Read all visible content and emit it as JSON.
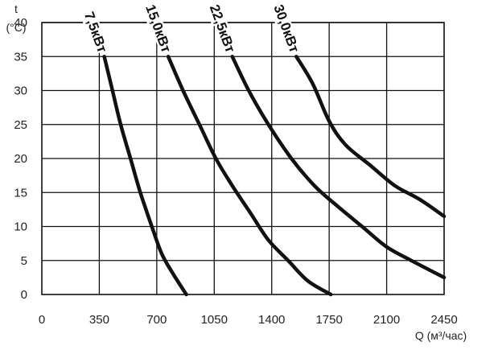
{
  "chart_data": {
    "type": "line",
    "y_title_top": "t",
    "y_title_bottom": "(°C)",
    "xlabel": "Q (м³/час)",
    "xlim": [
      0,
      2450
    ],
    "ylim": [
      0,
      40
    ],
    "x_ticks": [
      0,
      350,
      700,
      1050,
      1400,
      1750,
      2100,
      2450
    ],
    "y_ticks": [
      0,
      5,
      10,
      15,
      20,
      25,
      30,
      35,
      40
    ],
    "grid": true,
    "series": [
      {
        "name": "7,5кВт",
        "points": [
          [
            380,
            35
          ],
          [
            430,
            30
          ],
          [
            480,
            25
          ],
          [
            540,
            20
          ],
          [
            600,
            15
          ],
          [
            670,
            10
          ],
          [
            730,
            6
          ],
          [
            800,
            3
          ],
          [
            880,
            0
          ]
        ]
      },
      {
        "name": "15,0кВт",
        "points": [
          [
            770,
            35
          ],
          [
            860,
            30
          ],
          [
            960,
            25
          ],
          [
            1060,
            20
          ],
          [
            1160,
            16
          ],
          [
            1270,
            12
          ],
          [
            1380,
            8
          ],
          [
            1500,
            5
          ],
          [
            1620,
            2
          ],
          [
            1760,
            0
          ]
        ]
      },
      {
        "name": "22,5кВт",
        "points": [
          [
            1160,
            35
          ],
          [
            1260,
            30
          ],
          [
            1380,
            25
          ],
          [
            1520,
            20
          ],
          [
            1660,
            16
          ],
          [
            1800,
            13
          ],
          [
            1950,
            10
          ],
          [
            2100,
            7
          ],
          [
            2250,
            5
          ],
          [
            2450,
            2.5
          ]
        ]
      },
      {
        "name": "30,0кВт",
        "points": [
          [
            1550,
            35
          ],
          [
            1650,
            31
          ],
          [
            1750,
            25.5
          ],
          [
            1850,
            22
          ],
          [
            2000,
            19
          ],
          [
            2150,
            16
          ],
          [
            2300,
            14
          ],
          [
            2450,
            11.5
          ]
        ]
      }
    ]
  }
}
